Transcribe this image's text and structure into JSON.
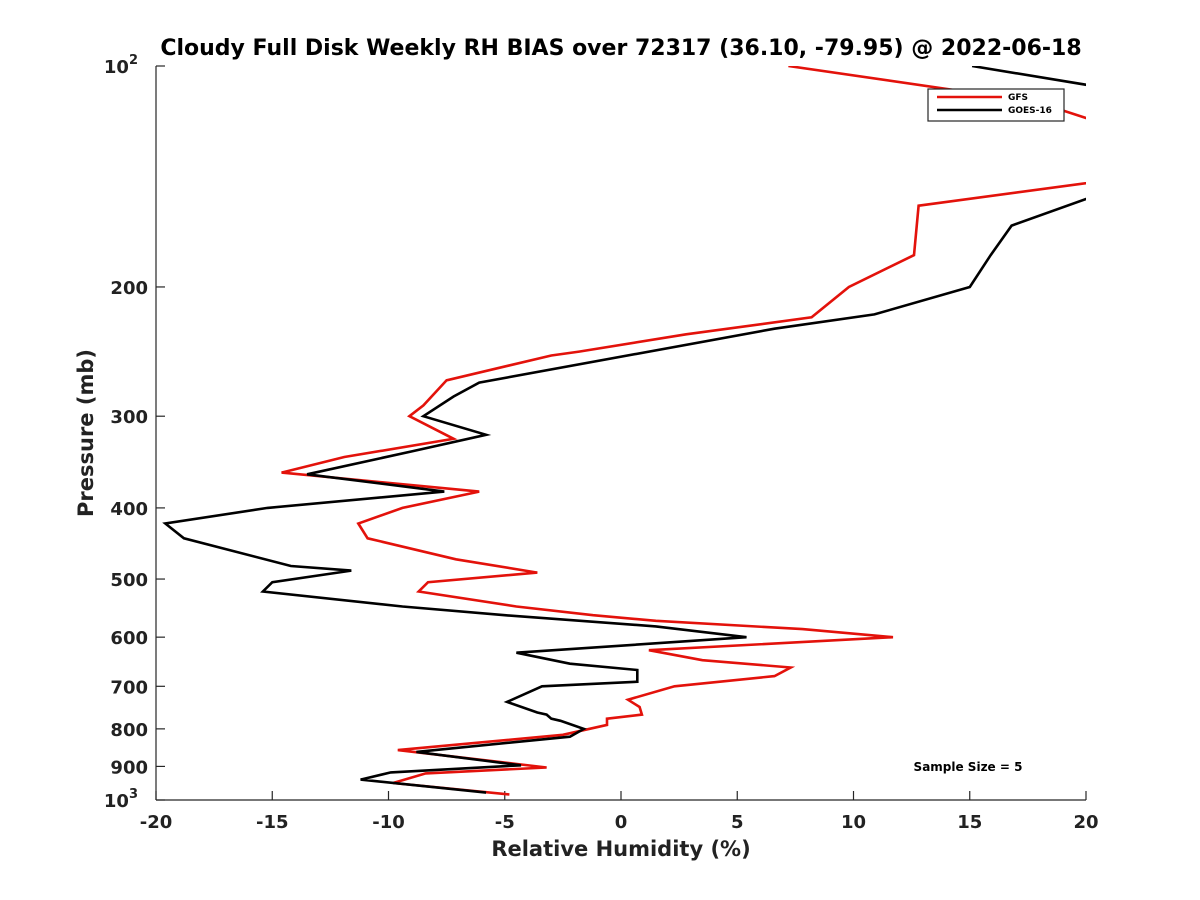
{
  "chart_data": {
    "type": "line",
    "title": "Cloudy Full Disk Weekly RH BIAS over 72317 (36.10, -79.95) @ 2022-06-18",
    "xlabel": "Relative Humidity (%)",
    "ylabel": "Pressure (mb)",
    "xlim": [
      -20,
      20
    ],
    "ylim": [
      100,
      1000
    ],
    "yscale": "log",
    "y_reversed": true,
    "grid": false,
    "legend_position": "top-right",
    "annotation": "Sample Size = 5",
    "x_ticks": [
      "-20",
      "-15",
      "-10",
      "-5",
      "0",
      "5",
      "10",
      "15",
      "20"
    ],
    "x_tick_values": [
      -20,
      -15,
      -10,
      -5,
      0,
      5,
      10,
      15,
      20
    ],
    "y_ticks": [
      {
        "value": 100,
        "base": "10",
        "exp": "2"
      },
      {
        "value": 200,
        "base": "200",
        "exp": ""
      },
      {
        "value": 300,
        "base": "300",
        "exp": ""
      },
      {
        "value": 400,
        "base": "400",
        "exp": ""
      },
      {
        "value": 500,
        "base": "500",
        "exp": ""
      },
      {
        "value": 600,
        "base": "600",
        "exp": ""
      },
      {
        "value": 700,
        "base": "700",
        "exp": ""
      },
      {
        "value": 800,
        "base": "800",
        "exp": ""
      },
      {
        "value": 900,
        "base": "900",
        "exp": ""
      },
      {
        "value": 1000,
        "base": "10",
        "exp": "3"
      }
    ],
    "series": [
      {
        "name": "GFS",
        "color": "#e3120b",
        "points": [
          [
            7.2,
            100
          ],
          [
            17.9,
            112
          ],
          [
            21.5,
            122
          ],
          [
            21.0,
            143
          ],
          [
            12.8,
            155
          ],
          [
            12.6,
            181
          ],
          [
            9.8,
            200
          ],
          [
            8.2,
            220
          ],
          [
            2.8,
            232
          ],
          [
            -1.8,
            245
          ],
          [
            -3.0,
            248
          ],
          [
            -7.5,
            268
          ],
          [
            -8.5,
            290
          ],
          [
            -9.1,
            300
          ],
          [
            -7.2,
            322
          ],
          [
            -11.9,
            341
          ],
          [
            -14.6,
            358
          ],
          [
            -6.1,
            380
          ],
          [
            -9.4,
            400
          ],
          [
            -11.3,
            420
          ],
          [
            -10.9,
            440
          ],
          [
            -7.1,
            470
          ],
          [
            -3.6,
            490
          ],
          [
            -8.3,
            505
          ],
          [
            -8.7,
            520
          ],
          [
            -4.5,
            545
          ],
          [
            -1.2,
            560
          ],
          [
            1.5,
            570
          ],
          [
            7.8,
            585
          ],
          [
            11.7,
            600
          ],
          [
            1.2,
            625
          ],
          [
            3.5,
            645
          ],
          [
            7.3,
            660
          ],
          [
            6.6,
            678
          ],
          [
            2.3,
            700
          ],
          [
            0.3,
            730
          ],
          [
            0.8,
            747
          ],
          [
            0.9,
            765
          ],
          [
            -0.6,
            775
          ],
          [
            -0.6,
            790
          ],
          [
            -2.5,
            815
          ],
          [
            -9.6,
            855
          ],
          [
            -3.2,
            903
          ],
          [
            -8.4,
            920
          ],
          [
            -9.8,
            948
          ],
          [
            -4.8,
            983
          ]
        ]
      },
      {
        "name": "GOES-16",
        "color": "#000000",
        "points": [
          [
            15.1,
            100
          ],
          [
            21.5,
            108
          ],
          [
            21.5,
            146
          ],
          [
            16.8,
            165
          ],
          [
            15.9,
            181
          ],
          [
            15.0,
            200
          ],
          [
            10.9,
            218
          ],
          [
            6.6,
            228
          ],
          [
            -6.1,
            270
          ],
          [
            -7.2,
            282
          ],
          [
            -8.5,
            300
          ],
          [
            -5.8,
            318
          ],
          [
            -9.0,
            335
          ],
          [
            -13.5,
            360
          ],
          [
            -7.6,
            380
          ],
          [
            -15.2,
            400
          ],
          [
            -19.6,
            420
          ],
          [
            -18.8,
            440
          ],
          [
            -14.2,
            480
          ],
          [
            -11.6,
            487
          ],
          [
            -15.0,
            505
          ],
          [
            -15.4,
            520
          ],
          [
            -9.4,
            545
          ],
          [
            -5.0,
            560
          ],
          [
            1.5,
            580
          ],
          [
            5.4,
            600
          ],
          [
            -4.5,
            630
          ],
          [
            -2.2,
            652
          ],
          [
            0.7,
            665
          ],
          [
            0.7,
            690
          ],
          [
            -3.4,
            700
          ],
          [
            -4.9,
            735
          ],
          [
            -3.6,
            760
          ],
          [
            -3.2,
            765
          ],
          [
            -3.0,
            775
          ],
          [
            -2.6,
            780
          ],
          [
            -1.6,
            800
          ],
          [
            -2.2,
            820
          ],
          [
            -8.8,
            860
          ],
          [
            -4.3,
            897
          ],
          [
            -9.9,
            917
          ],
          [
            -11.2,
            938
          ],
          [
            -5.8,
            977
          ]
        ]
      }
    ]
  }
}
